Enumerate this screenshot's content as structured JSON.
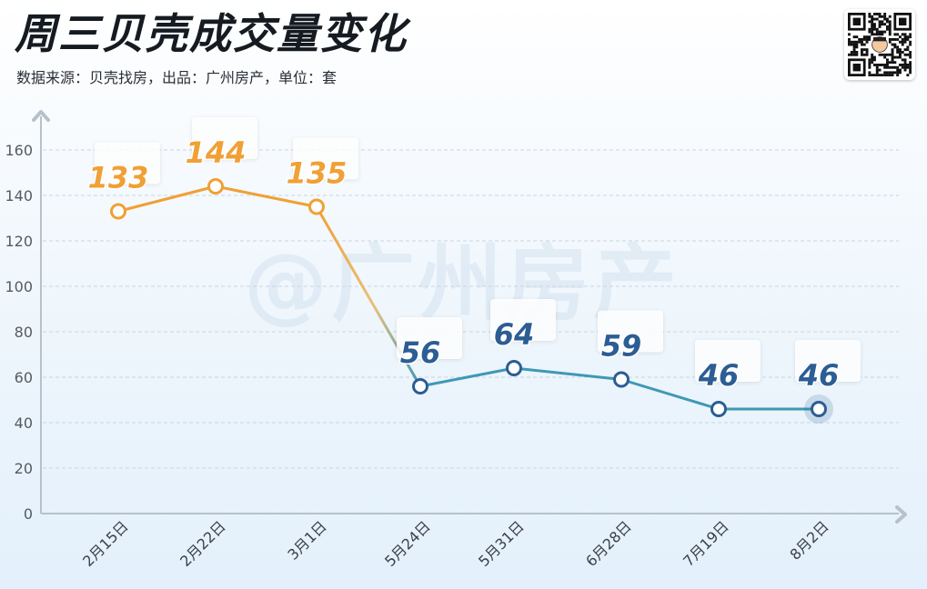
{
  "header": {
    "title": "周三贝壳成交量变化",
    "subtitle": "数据来源：贝壳找房，出品：广州房产，单位：套"
  },
  "watermark": "@广州房产",
  "qr_icon": "qr-code-icon",
  "colors": {
    "orange": "#f0a035",
    "blue": "#2c5d94",
    "blue_line": "#3f98b5",
    "grid": "#c9d4df"
  },
  "chart_data": {
    "type": "line",
    "title": "周三贝壳成交量变化",
    "xlabel": "",
    "ylabel": "",
    "categories": [
      "2月15日",
      "2月22日",
      "3月1日",
      "5月24日",
      "5月31日",
      "6月28日",
      "7月19日",
      "8月2日"
    ],
    "values": [
      133,
      144,
      135,
      56,
      64,
      59,
      46,
      46
    ],
    "ylim": [
      0,
      160
    ],
    "yticks": [
      0,
      20,
      40,
      60,
      80,
      100,
      120,
      140,
      160
    ],
    "grid": true,
    "highlight_last_point": true
  }
}
